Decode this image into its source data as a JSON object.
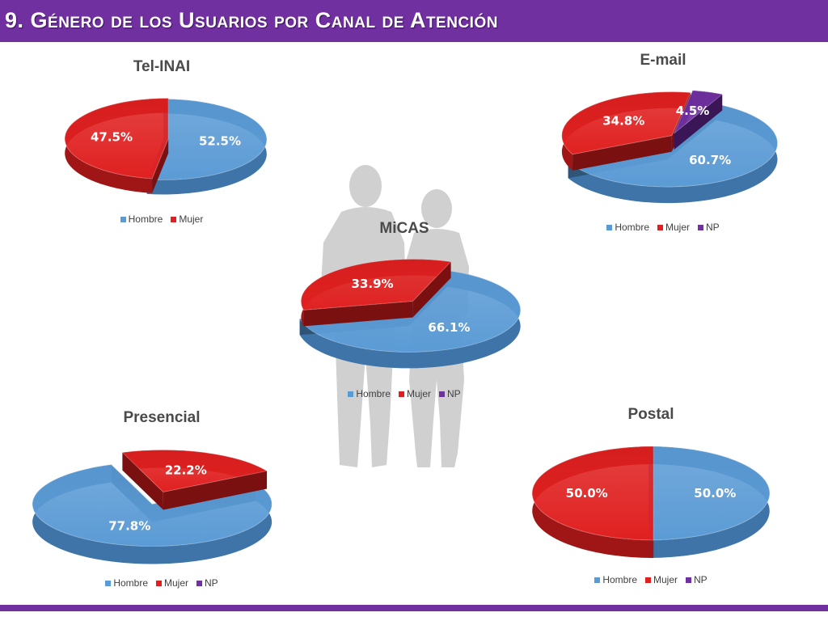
{
  "header": {
    "title": "9. Género de los Usuarios por Canal de Atención"
  },
  "colors": {
    "header": "#7030a0",
    "hombre": "#5b9bd5",
    "mujer": "#e02020",
    "np": "#7030a0"
  },
  "chart_data": [
    {
      "type": "pie",
      "title": "Tel-INAI",
      "labels": [
        "Hombre",
        "Mujer"
      ],
      "values": [
        52.5,
        47.5
      ],
      "value_labels": [
        "52.5%",
        "47.5%"
      ],
      "legend": [
        "Hombre",
        "Mujer"
      ],
      "legend_position": "bottom"
    },
    {
      "type": "pie",
      "title": "E-mail",
      "labels": [
        "Hombre",
        "Mujer",
        "NP"
      ],
      "values": [
        60.7,
        34.8,
        4.5
      ],
      "value_labels": [
        "60.7%",
        "34.8%",
        "4.5%"
      ],
      "legend": [
        "Hombre",
        "Mujer",
        "NP"
      ],
      "legend_position": "bottom"
    },
    {
      "type": "pie",
      "title": "MiCAS",
      "labels": [
        "Hombre",
        "Mujer"
      ],
      "values": [
        66.1,
        33.9
      ],
      "value_labels": [
        "66.1%",
        "33.9%"
      ],
      "legend": [
        "Hombre",
        "Mujer",
        "NP"
      ],
      "legend_position": "bottom"
    },
    {
      "type": "pie",
      "title": "Presencial",
      "labels": [
        "Hombre",
        "Mujer"
      ],
      "values": [
        77.8,
        22.2
      ],
      "value_labels": [
        "77.8%",
        "22.2%"
      ],
      "legend": [
        "Hombre",
        "Mujer",
        "NP"
      ],
      "legend_position": "bottom"
    },
    {
      "type": "pie",
      "title": "Postal",
      "labels": [
        "Hombre",
        "Mujer"
      ],
      "values": [
        50.0,
        50.0
      ],
      "value_labels": [
        "50.0%",
        "50.0%"
      ],
      "legend": [
        "Hombre",
        "Mujer",
        "NP"
      ],
      "legend_position": "bottom"
    }
  ]
}
